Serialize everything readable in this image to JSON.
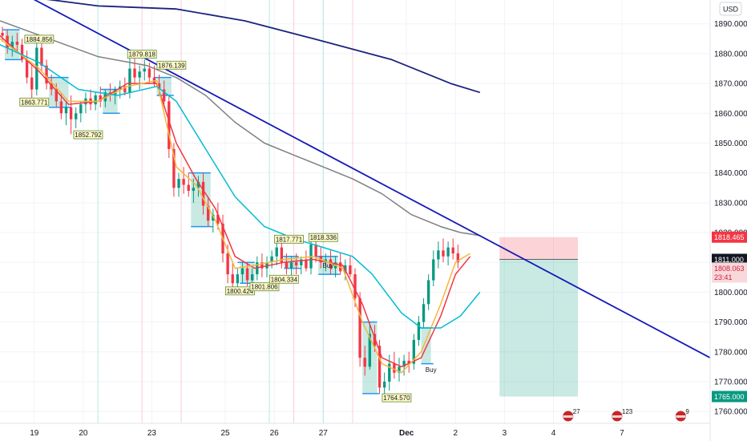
{
  "chart_data": {
    "type": "candlestick",
    "currency_button": "USD",
    "y_axis": {
      "range": [
        1756,
        1898
      ],
      "ticks": [
        1890,
        1880,
        1870,
        1860,
        1850,
        1840,
        1830,
        1820,
        1810,
        1800,
        1790,
        1780,
        1770,
        1760
      ],
      "tick_labels": [
        "1890.000",
        "1880.000",
        "1870.000",
        "1860.000",
        "1850.000",
        "1840.000",
        "1830.000",
        "1820.000",
        "1810.000",
        "1800.000",
        "1790.000",
        "1780.000",
        "1770.000",
        "1760.000"
      ]
    },
    "x_axis": {
      "range": [
        0,
        145
      ],
      "tick_labels": [
        "19",
        "20",
        "23",
        "25",
        "26",
        "27",
        "Dec",
        "2",
        "3",
        "4",
        "7"
      ],
      "tick_positions": [
        7,
        17,
        31,
        46,
        56,
        66,
        83,
        93,
        103,
        113,
        127
      ]
    },
    "grid": true,
    "candles": [
      [
        1887,
        1889,
        1884,
        1886
      ],
      [
        1886,
        1888,
        1880,
        1882
      ],
      [
        1882,
        1886,
        1879,
        1884
      ],
      [
        1884,
        1887,
        1881,
        1883
      ],
      [
        1883,
        1885,
        1877,
        1878
      ],
      [
        1878,
        1881,
        1870,
        1872
      ],
      [
        1872,
        1876,
        1865,
        1868
      ],
      [
        1868,
        1885,
        1866,
        1882
      ],
      [
        1882,
        1884,
        1874,
        1876
      ],
      [
        1876,
        1878,
        1868,
        1870
      ],
      [
        1870,
        1873,
        1866,
        1868
      ],
      [
        1868,
        1870,
        1862,
        1864
      ],
      [
        1864,
        1867,
        1858,
        1860
      ],
      [
        1860,
        1864,
        1856,
        1862
      ],
      [
        1862,
        1866,
        1853,
        1858
      ],
      [
        1858,
        1862,
        1855,
        1860
      ],
      [
        1860,
        1864,
        1857,
        1863
      ],
      [
        1863,
        1867,
        1860,
        1865
      ],
      [
        1865,
        1868,
        1861,
        1863
      ],
      [
        1863,
        1867,
        1861,
        1866
      ],
      [
        1866,
        1869,
        1862,
        1864
      ],
      [
        1864,
        1868,
        1862,
        1867
      ],
      [
        1867,
        1870,
        1864,
        1866
      ],
      [
        1866,
        1869,
        1863,
        1868
      ],
      [
        1868,
        1871,
        1865,
        1869
      ],
      [
        1869,
        1872,
        1866,
        1867
      ],
      [
        1867,
        1880,
        1865,
        1875
      ],
      [
        1875,
        1879,
        1870,
        1872
      ],
      [
        1872,
        1876,
        1868,
        1874
      ],
      [
        1874,
        1878,
        1871,
        1875
      ],
      [
        1875,
        1877,
        1870,
        1872
      ],
      [
        1872,
        1876,
        1869,
        1870
      ],
      [
        1870,
        1873,
        1866,
        1868
      ],
      [
        1868,
        1871,
        1862,
        1864
      ],
      [
        1864,
        1866,
        1845,
        1848
      ],
      [
        1848,
        1850,
        1832,
        1835
      ],
      [
        1835,
        1840,
        1832,
        1838
      ],
      [
        1838,
        1842,
        1833,
        1836
      ],
      [
        1836,
        1840,
        1832,
        1834
      ],
      [
        1834,
        1838,
        1830,
        1835
      ],
      [
        1835,
        1839,
        1832,
        1837
      ],
      [
        1837,
        1840,
        1826,
        1829
      ],
      [
        1829,
        1832,
        1822,
        1824
      ],
      [
        1824,
        1828,
        1820,
        1826
      ],
      [
        1826,
        1830,
        1821,
        1823
      ],
      [
        1823,
        1826,
        1810,
        1813
      ],
      [
        1813,
        1816,
        1803,
        1806
      ],
      [
        1806,
        1810,
        1801,
        1803
      ],
      [
        1803,
        1808,
        1800,
        1806
      ],
      [
        1806,
        1810,
        1803,
        1808
      ],
      [
        1808,
        1810,
        1802,
        1804
      ],
      [
        1804,
        1808,
        1802,
        1806
      ],
      [
        1806,
        1812,
        1804,
        1810
      ],
      [
        1810,
        1813,
        1805,
        1808
      ],
      [
        1808,
        1812,
        1805,
        1810
      ],
      [
        1810,
        1814,
        1808,
        1812
      ],
      [
        1812,
        1818,
        1809,
        1815
      ],
      [
        1815,
        1817,
        1808,
        1810
      ],
      [
        1810,
        1813,
        1806,
        1808
      ],
      [
        1808,
        1812,
        1805,
        1810
      ],
      [
        1810,
        1813,
        1806,
        1809
      ],
      [
        1809,
        1812,
        1806,
        1811
      ],
      [
        1811,
        1814,
        1807,
        1808
      ],
      [
        1808,
        1819,
        1806,
        1816
      ],
      [
        1816,
        1818,
        1810,
        1812
      ],
      [
        1812,
        1815,
        1808,
        1810
      ],
      [
        1810,
        1813,
        1807,
        1811
      ],
      [
        1811,
        1814,
        1806,
        1808
      ],
      [
        1808,
        1812,
        1805,
        1810
      ],
      [
        1810,
        1813,
        1806,
        1807
      ],
      [
        1807,
        1811,
        1804,
        1809
      ],
      [
        1809,
        1812,
        1805,
        1806
      ],
      [
        1806,
        1808,
        1795,
        1798
      ],
      [
        1798,
        1800,
        1775,
        1778
      ],
      [
        1778,
        1782,
        1772,
        1775
      ],
      [
        1775,
        1790,
        1774,
        1786
      ],
      [
        1786,
        1789,
        1780,
        1782
      ],
      [
        1782,
        1784,
        1766,
        1768
      ],
      [
        1768,
        1773,
        1765,
        1770
      ],
      [
        1770,
        1779,
        1767,
        1776
      ],
      [
        1776,
        1780,
        1771,
        1773
      ],
      [
        1773,
        1778,
        1770,
        1775
      ],
      [
        1775,
        1779,
        1772,
        1777
      ],
      [
        1777,
        1780,
        1773,
        1776
      ],
      [
        1776,
        1786,
        1774,
        1784
      ],
      [
        1784,
        1792,
        1782,
        1790
      ],
      [
        1790,
        1798,
        1788,
        1796
      ],
      [
        1796,
        1806,
        1794,
        1804
      ],
      [
        1804,
        1814,
        1802,
        1811
      ],
      [
        1811,
        1817,
        1808,
        1814
      ],
      [
        1814,
        1818,
        1810,
        1812
      ],
      [
        1812,
        1817,
        1809,
        1815
      ],
      [
        1815,
        1818,
        1811,
        1813
      ],
      [
        1813,
        1816,
        1808,
        1810
      ]
    ],
    "candle_colors": {
      "up": "#089981",
      "down": "#f23645"
    },
    "series": [
      {
        "color": "#f23645",
        "points": [
          [
            0,
            1886
          ],
          [
            8,
            1874
          ],
          [
            14,
            1863
          ],
          [
            20,
            1864
          ],
          [
            26,
            1870
          ],
          [
            32,
            1870
          ],
          [
            36,
            1850
          ],
          [
            40,
            1838
          ],
          [
            44,
            1828
          ],
          [
            48,
            1812
          ],
          [
            52,
            1808
          ],
          [
            58,
            1810
          ],
          [
            64,
            1811
          ],
          [
            70,
            1809
          ],
          [
            74,
            1796
          ],
          [
            78,
            1778
          ],
          [
            82,
            1775
          ],
          [
            86,
            1778
          ],
          [
            90,
            1792
          ],
          [
            93,
            1806
          ],
          [
            96,
            1812
          ]
        ]
      },
      {
        "color": "#f5b73b",
        "points": [
          [
            0,
            1885
          ],
          [
            8,
            1875
          ],
          [
            14,
            1864
          ],
          [
            20,
            1864
          ],
          [
            26,
            1869
          ],
          [
            32,
            1871
          ],
          [
            36,
            1842
          ],
          [
            40,
            1836
          ],
          [
            44,
            1824
          ],
          [
            48,
            1808
          ],
          [
            52,
            1809
          ],
          [
            58,
            1811
          ],
          [
            64,
            1812
          ],
          [
            70,
            1808
          ],
          [
            74,
            1790
          ],
          [
            78,
            1776
          ],
          [
            82,
            1773
          ],
          [
            86,
            1780
          ],
          [
            90,
            1796
          ],
          [
            93,
            1810
          ],
          [
            96,
            1813
          ]
        ]
      },
      {
        "color": "#00bcd4",
        "points": [
          [
            0,
            1883
          ],
          [
            8,
            1877
          ],
          [
            16,
            1868
          ],
          [
            24,
            1866
          ],
          [
            32,
            1869
          ],
          [
            36,
            1864
          ],
          [
            42,
            1848
          ],
          [
            48,
            1832
          ],
          [
            54,
            1822
          ],
          [
            60,
            1818
          ],
          [
            66,
            1815
          ],
          [
            72,
            1812
          ],
          [
            76,
            1806
          ],
          [
            82,
            1793
          ],
          [
            86,
            1788
          ],
          [
            90,
            1788
          ],
          [
            94,
            1792
          ],
          [
            98,
            1800
          ]
        ]
      },
      {
        "color": "#808080",
        "points": [
          [
            0,
            1891
          ],
          [
            10,
            1885
          ],
          [
            20,
            1879
          ],
          [
            30,
            1876
          ],
          [
            36,
            1872
          ],
          [
            42,
            1866
          ],
          [
            48,
            1857
          ],
          [
            54,
            1850
          ],
          [
            60,
            1846
          ],
          [
            66,
            1842
          ],
          [
            72,
            1838
          ],
          [
            78,
            1833
          ],
          [
            84,
            1826
          ],
          [
            90,
            1822
          ],
          [
            94,
            1820
          ],
          [
            98,
            1819
          ]
        ]
      },
      {
        "color": "#1a237e",
        "points": [
          [
            6,
            1899
          ],
          [
            20,
            1896
          ],
          [
            36,
            1895
          ],
          [
            50,
            1891
          ],
          [
            64,
            1885
          ],
          [
            80,
            1878
          ],
          [
            92,
            1870
          ],
          [
            98,
            1867
          ]
        ]
      },
      {
        "color": "#1419b8",
        "points": [
          [
            6,
            1899
          ],
          [
            145,
            1778
          ]
        ]
      }
    ],
    "price_labels": [
      {
        "x": 8,
        "y": 1884.856,
        "text": "1884.856"
      },
      {
        "x": 29,
        "y": 1879.818,
        "text": "1879.818"
      },
      {
        "x": 35,
        "y": 1876.139,
        "text": "1876.139"
      },
      {
        "x": 7,
        "y": 1863.771,
        "text": "1863.771"
      },
      {
        "x": 18,
        "y": 1852.792,
        "text": "1852.792"
      },
      {
        "x": 59,
        "y": 1817.771,
        "text": "1817.771"
      },
      {
        "x": 66,
        "y": 1818.336,
        "text": "1818.336"
      },
      {
        "x": 49,
        "y": 1800.424,
        "text": "1800.424"
      },
      {
        "x": 54,
        "y": 1801.806,
        "text": "1801.806"
      },
      {
        "x": 58,
        "y": 1804.334,
        "text": "1804.334"
      },
      {
        "x": 81,
        "y": 1764.57,
        "text": "1764.570"
      }
    ],
    "buy_labels": [
      {
        "x": 67,
        "y": 1809,
        "text": "Buy"
      },
      {
        "x": 88,
        "y": 1774,
        "text": "Buy"
      }
    ],
    "position": {
      "x_start": 102,
      "x_end": 118,
      "target": 1765.0,
      "entry": 1811.0,
      "stop": 1818.465
    },
    "axis_tags": [
      {
        "y": 1818.465,
        "text": "1818.465",
        "bg": "#f23645",
        "fg": "#ffffff"
      },
      {
        "y": 1811.0,
        "text": "1811.000",
        "bg": "#131722",
        "fg": "#ffffff"
      },
      {
        "y": 1808.063,
        "text": "1808.063",
        "bg": "#f7d9dc",
        "fg": "#d81b3c"
      },
      {
        "y": 1805.1,
        "text": "23:41",
        "bg": "#f7d9dc",
        "fg": "#d81b3c"
      },
      {
        "y": 1765.0,
        "text": "1765.000",
        "bg": "#089981",
        "fg": "#ffffff"
      }
    ],
    "events": [
      {
        "x": 116,
        "text": "27"
      },
      {
        "x": 126,
        "text": "123"
      },
      {
        "x": 139,
        "text": "9"
      }
    ]
  }
}
